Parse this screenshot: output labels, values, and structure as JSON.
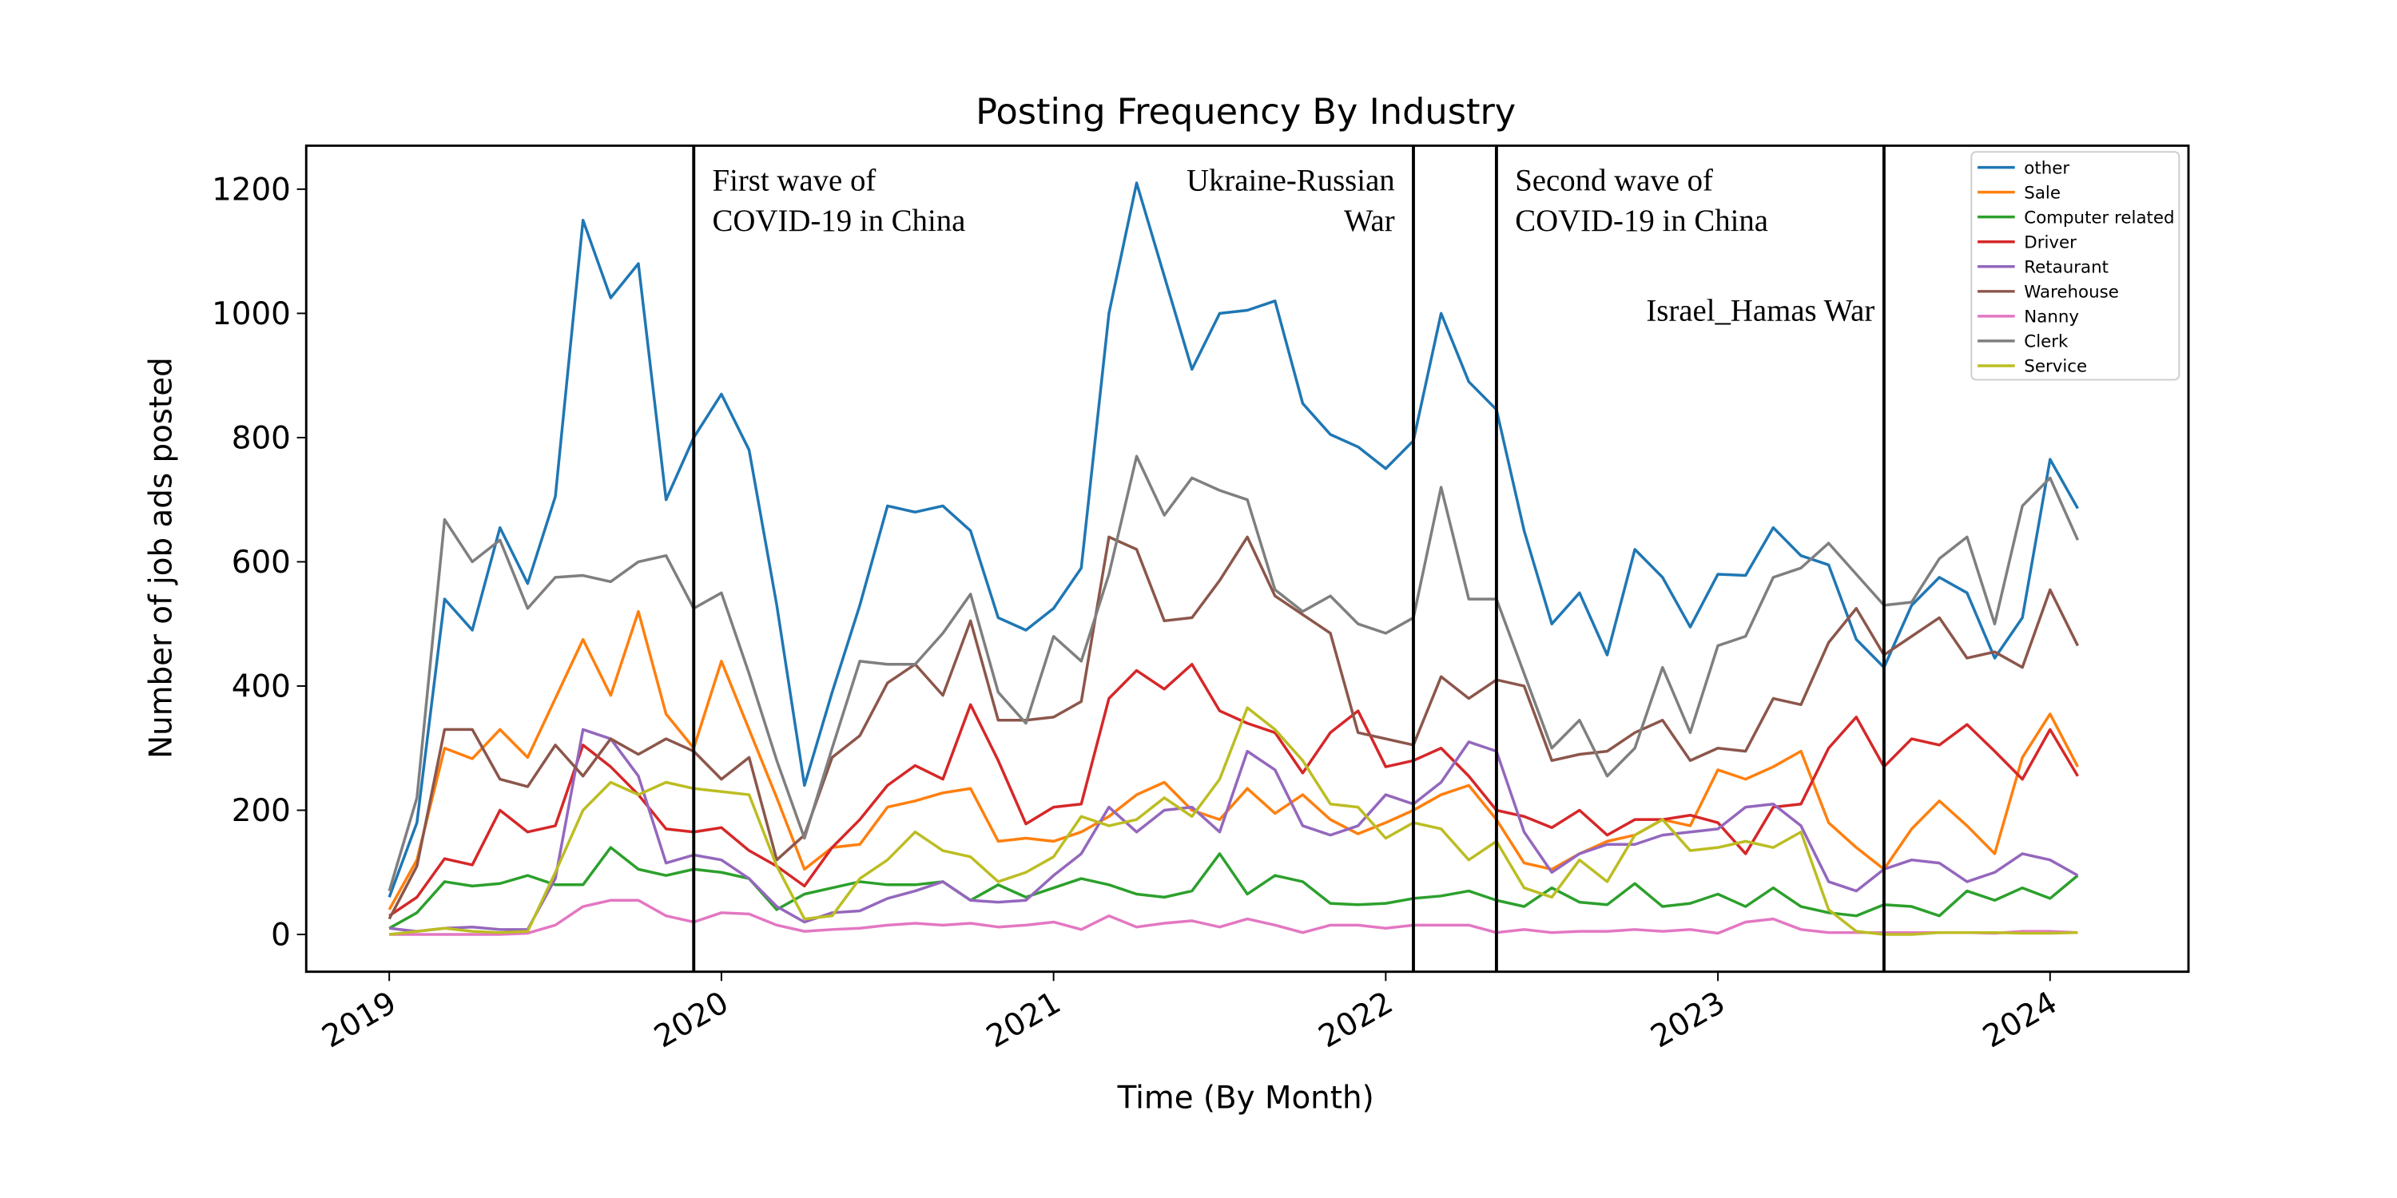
{
  "chart_data": {
    "type": "line",
    "title": "Posting Frequency By Industry",
    "x_label": "Time (By Month)",
    "y_label": "Number of job ads posted",
    "x": [
      "2019-01",
      "2019-02",
      "2019-03",
      "2019-04",
      "2019-05",
      "2019-06",
      "2019-07",
      "2019-08",
      "2019-09",
      "2019-10",
      "2019-11",
      "2019-12",
      "2020-01",
      "2020-02",
      "2020-03",
      "2020-04",
      "2020-05",
      "2020-06",
      "2020-07",
      "2020-08",
      "2020-09",
      "2020-10",
      "2020-11",
      "2020-12",
      "2021-01",
      "2021-02",
      "2021-03",
      "2021-04",
      "2021-05",
      "2021-06",
      "2021-07",
      "2021-08",
      "2021-09",
      "2021-10",
      "2021-11",
      "2021-12",
      "2022-01",
      "2022-02",
      "2022-03",
      "2022-04",
      "2022-05",
      "2022-06",
      "2022-07",
      "2022-08",
      "2022-09",
      "2022-10",
      "2022-11",
      "2022-12",
      "2023-01",
      "2023-02",
      "2023-03",
      "2023-04",
      "2023-05",
      "2023-06",
      "2023-07",
      "2023-08",
      "2023-09",
      "2023-10",
      "2023-11",
      "2023-12",
      "2024-01",
      "2024-02"
    ],
    "xlim": [
      "2018-10",
      "2024-06"
    ],
    "xticks": [
      {
        "value": "2019-01",
        "label": "2019"
      },
      {
        "value": "2020-01",
        "label": "2020"
      },
      {
        "value": "2021-01",
        "label": "2021"
      },
      {
        "value": "2022-01",
        "label": "2022"
      },
      {
        "value": "2023-01",
        "label": "2023"
      },
      {
        "value": "2024-01",
        "label": "2024"
      }
    ],
    "ylim": [
      -60,
      1270
    ],
    "yticks": [
      0,
      200,
      400,
      600,
      800,
      1000,
      1200
    ],
    "legend": "upper right",
    "series": [
      {
        "name": "other",
        "color": "#1f77b4",
        "values": [
          60,
          180,
          540,
          490,
          655,
          565,
          705,
          1150,
          1025,
          1080,
          700,
          800,
          870,
          780,
          530,
          240,
          390,
          530,
          690,
          680,
          690,
          650,
          510,
          490,
          525,
          590,
          1000,
          1210,
          1060,
          910,
          1000,
          1005,
          1020,
          855,
          805,
          785,
          750,
          795,
          1000,
          890,
          845,
          650,
          500,
          550,
          450,
          620,
          575,
          495,
          580,
          578,
          655,
          610,
          595,
          475,
          430,
          530,
          575,
          550,
          445,
          510,
          765,
          686
        ]
      },
      {
        "name": "Sale",
        "color": "#ff7f0e",
        "values": [
          40,
          120,
          300,
          283,
          330,
          285,
          380,
          475,
          385,
          520,
          355,
          300,
          440,
          330,
          220,
          105,
          140,
          145,
          205,
          215,
          228,
          235,
          150,
          155,
          150,
          165,
          190,
          225,
          245,
          200,
          185,
          235,
          195,
          225,
          185,
          162,
          180,
          200,
          225,
          240,
          185,
          115,
          105,
          130,
          150,
          160,
          185,
          175,
          265,
          250,
          270,
          295,
          180,
          140,
          105,
          170,
          215,
          175,
          130,
          285,
          355,
          270
        ]
      },
      {
        "name": "Computer related",
        "color": "#2ca02c",
        "values": [
          10,
          35,
          85,
          78,
          82,
          95,
          80,
          80,
          140,
          105,
          95,
          105,
          100,
          90,
          40,
          65,
          75,
          85,
          80,
          80,
          85,
          55,
          80,
          60,
          75,
          90,
          80,
          65,
          60,
          70,
          130,
          65,
          95,
          85,
          50,
          48,
          50,
          58,
          62,
          70,
          55,
          45,
          75,
          52,
          48,
          82,
          45,
          50,
          65,
          45,
          75,
          45,
          35,
          30,
          48,
          45,
          30,
          70,
          55,
          75,
          58,
          95
        ]
      },
      {
        "name": "Driver",
        "color": "#d62728",
        "values": [
          30,
          60,
          122,
          112,
          200,
          165,
          175,
          305,
          270,
          225,
          170,
          165,
          172,
          135,
          110,
          78,
          140,
          185,
          240,
          272,
          250,
          370,
          280,
          178,
          205,
          210,
          380,
          425,
          395,
          435,
          360,
          340,
          325,
          260,
          325,
          360,
          270,
          280,
          300,
          255,
          200,
          190,
          172,
          200,
          160,
          185,
          185,
          192,
          180,
          130,
          205,
          210,
          300,
          350,
          270,
          315,
          305,
          338,
          295,
          250,
          330,
          255
        ]
      },
      {
        "name": "Retaurant",
        "color": "#9467bd",
        "values": [
          10,
          5,
          10,
          12,
          8,
          8,
          90,
          330,
          315,
          255,
          115,
          128,
          120,
          90,
          45,
          20,
          35,
          38,
          58,
          70,
          85,
          55,
          52,
          55,
          95,
          130,
          205,
          165,
          200,
          205,
          165,
          295,
          265,
          175,
          160,
          175,
          225,
          210,
          245,
          310,
          295,
          165,
          100,
          130,
          145,
          145,
          160,
          165,
          170,
          205,
          210,
          175,
          85,
          70,
          105,
          120,
          115,
          85,
          100,
          130,
          120,
          95
        ]
      },
      {
        "name": "Warehouse",
        "color": "#8c564b",
        "values": [
          25,
          110,
          330,
          330,
          250,
          238,
          305,
          255,
          315,
          290,
          315,
          295,
          250,
          285,
          120,
          160,
          285,
          320,
          405,
          435,
          385,
          505,
          345,
          345,
          350,
          375,
          640,
          620,
          505,
          510,
          570,
          640,
          545,
          515,
          485,
          325,
          315,
          305,
          415,
          380,
          410,
          400,
          280,
          290,
          295,
          325,
          345,
          280,
          300,
          295,
          380,
          370,
          470,
          525,
          450,
          480,
          510,
          445,
          455,
          430,
          555,
          465
        ]
      },
      {
        "name": "Nanny",
        "color": "#e377c2",
        "values": [
          0,
          0,
          0,
          0,
          0,
          2,
          15,
          45,
          55,
          55,
          30,
          20,
          35,
          33,
          15,
          5,
          8,
          10,
          15,
          18,
          15,
          18,
          12,
          15,
          20,
          8,
          30,
          12,
          18,
          22,
          12,
          25,
          15,
          3,
          15,
          15,
          10,
          15,
          15,
          15,
          3,
          8,
          3,
          5,
          5,
          8,
          5,
          8,
          2,
          20,
          25,
          8,
          3,
          3,
          3,
          3,
          3,
          3,
          2,
          5,
          5,
          3
        ]
      },
      {
        "name": "Clerk",
        "color": "#7f7f7f",
        "values": [
          70,
          220,
          668,
          600,
          635,
          525,
          575,
          578,
          568,
          600,
          610,
          525,
          550,
          420,
          280,
          155,
          300,
          440,
          435,
          435,
          485,
          548,
          390,
          340,
          480,
          440,
          580,
          770,
          675,
          735,
          715,
          700,
          555,
          520,
          545,
          500,
          485,
          510,
          720,
          540,
          540,
          420,
          300,
          345,
          255,
          300,
          430,
          325,
          465,
          480,
          575,
          590,
          630,
          580,
          530,
          535,
          605,
          640,
          500,
          690,
          735,
          635
        ]
      },
      {
        "name": "Service",
        "color": "#bcbd22",
        "values": [
          0,
          5,
          10,
          5,
          3,
          5,
          100,
          200,
          245,
          225,
          245,
          235,
          230,
          225,
          110,
          25,
          30,
          90,
          120,
          165,
          135,
          125,
          85,
          100,
          125,
          190,
          175,
          185,
          220,
          190,
          250,
          365,
          330,
          280,
          210,
          205,
          155,
          180,
          170,
          120,
          150,
          75,
          60,
          120,
          85,
          160,
          185,
          135,
          140,
          150,
          140,
          165,
          40,
          5,
          0,
          0,
          3,
          3,
          3,
          2,
          2,
          3
        ]
      }
    ],
    "events": [
      {
        "x": "2019-12",
        "label": [
          "First wave of",
          "COVID-19 in China"
        ]
      },
      {
        "x": "2022-02",
        "label": [
          "Ukraine-Russian",
          "War"
        ]
      },
      {
        "x": "2022-05",
        "label": [
          "Second wave of",
          "COVID-19 in China"
        ]
      },
      {
        "x": "2023-07",
        "label": [
          "Israel_Hamas War"
        ]
      }
    ]
  }
}
